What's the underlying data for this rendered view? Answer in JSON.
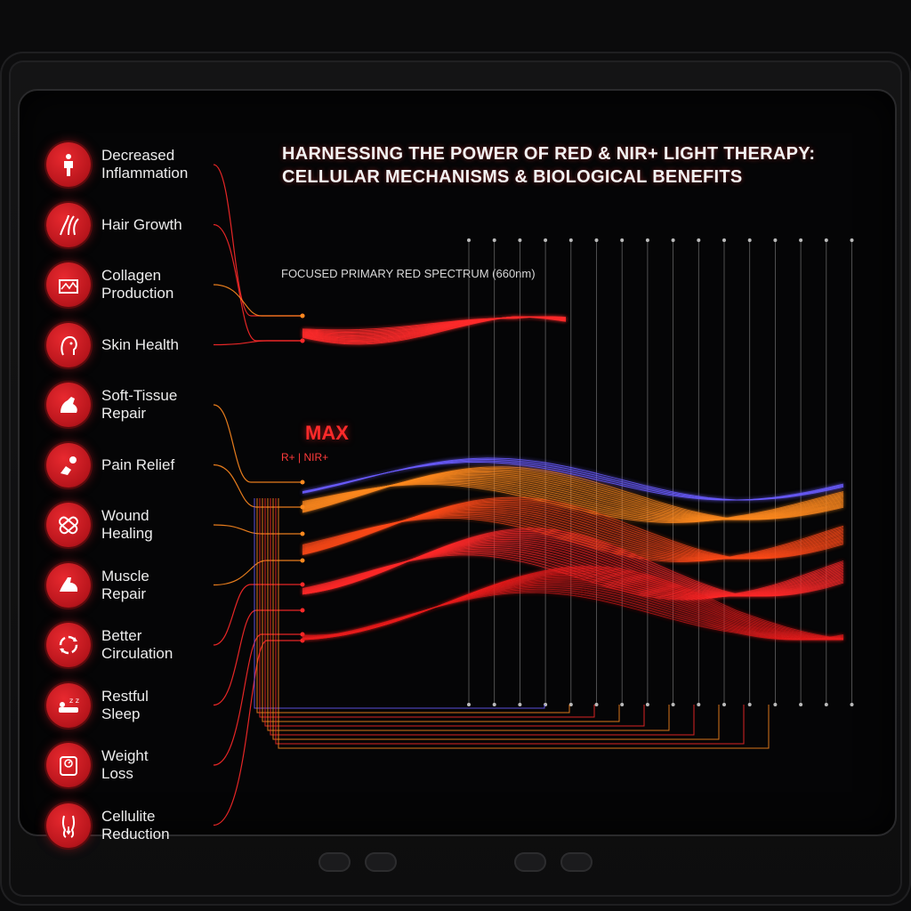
{
  "header": {
    "title_line1": "HARNESSING THE POWER OF RED & NIR+ LIGHT THERAPY:",
    "title_line2": "CELLULAR MECHANISMS & BIOLOGICAL BENEFITS"
  },
  "spectrum": {
    "label": "FOCUSED PRIMARY RED SPECTRUM (660nm)",
    "max_label": "MAX",
    "mode_label": "R+ | NIR+"
  },
  "benefits": [
    {
      "label": "Decreased\nInflammation",
      "icon": "inflammation-icon"
    },
    {
      "label": "Hair Growth",
      "icon": "hair-follicle-icon"
    },
    {
      "label": "Collagen\nProduction",
      "icon": "collagen-icon"
    },
    {
      "label": "Skin Health",
      "icon": "face-skin-icon"
    },
    {
      "label": "Soft-Tissue\nRepair",
      "icon": "arm-tissue-icon"
    },
    {
      "label": "Pain Relief",
      "icon": "pain-icon"
    },
    {
      "label": "Wound\nHealing",
      "icon": "bandage-icon"
    },
    {
      "label": "Muscle\nRepair",
      "icon": "muscle-icon"
    },
    {
      "label": "Better\nCirculation",
      "icon": "circulation-arrows-icon"
    },
    {
      "label": "Restful\nSleep",
      "icon": "sleep-icon"
    },
    {
      "label": "Weight\nLoss",
      "icon": "scale-icon"
    },
    {
      "label": "Cellulite\nReduction",
      "icon": "body-silhouette-icon"
    }
  ],
  "colors": {
    "red": "#ff2a2a",
    "orange": "#ff8a1f",
    "blue": "#6a5cff",
    "icon_bg": "#c8161e"
  }
}
